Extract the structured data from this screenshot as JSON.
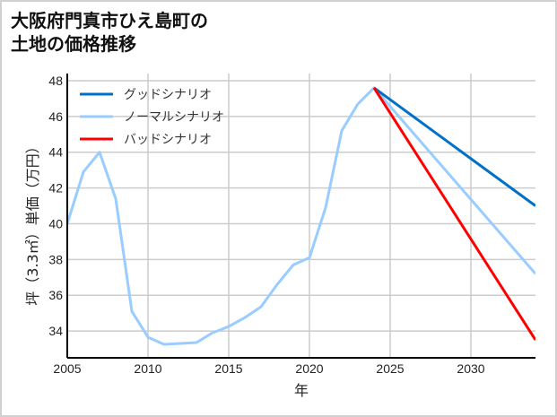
{
  "title_lines": [
    "大阪府門真市ひえ島町の",
    "土地の価格推移"
  ],
  "chart_data": {
    "type": "line",
    "title": "大阪府門真市ひえ島町の土地の価格推移",
    "xlabel": "年",
    "ylabel": "坪（3.3㎡）単価（万円）",
    "xlim": [
      2005,
      2034
    ],
    "ylim": [
      32.5,
      48.4
    ],
    "xticks": [
      2005,
      2010,
      2015,
      2020,
      2025,
      2030
    ],
    "yticks": [
      34,
      36,
      38,
      40,
      42,
      44,
      46,
      48
    ],
    "grid": true,
    "legend_position": "top-left",
    "series": [
      {
        "name": "グッドシナリオ",
        "color": "#0070c8",
        "x": [
          2024,
          2034
        ],
        "y": [
          47.6,
          41.0
        ]
      },
      {
        "name": "ノーマルシナリオ",
        "color": "#99ccff",
        "x": [
          2005,
          2006,
          2007,
          2008,
          2009,
          2010,
          2011,
          2012,
          2013,
          2014,
          2015,
          2016,
          2017,
          2018,
          2019,
          2020,
          2021,
          2022,
          2023,
          2024,
          2034
        ],
        "y": [
          40.0,
          42.9,
          44.0,
          41.4,
          35.1,
          33.65,
          33.25,
          33.3,
          33.35,
          33.9,
          34.25,
          34.75,
          35.35,
          36.6,
          37.7,
          38.1,
          40.9,
          45.2,
          46.7,
          47.6,
          37.2
        ]
      },
      {
        "name": "バッドシナリオ",
        "color": "#ff0000",
        "x": [
          2024,
          2034
        ],
        "y": [
          47.6,
          33.5
        ]
      }
    ]
  }
}
